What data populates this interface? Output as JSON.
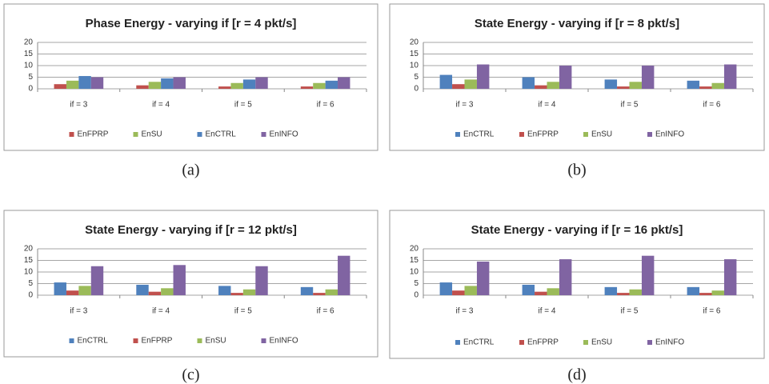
{
  "chart_data": [
    {
      "type": "bar",
      "title": "Phase Energy - varying if [r = 4 pkt/s]",
      "caption": "(a)",
      "categories": [
        "if = 3",
        "if = 4",
        "if = 5",
        "if = 6"
      ],
      "series": [
        {
          "name": "EnFPRP",
          "color": "#c0504d",
          "values": [
            2,
            1.5,
            1,
            1
          ]
        },
        {
          "name": "EnSU",
          "color": "#9bbb59",
          "values": [
            3.5,
            3,
            2.5,
            2.5
          ]
        },
        {
          "name": "EnCTRL",
          "color": "#4f81bd",
          "values": [
            5.5,
            4.5,
            4,
            3.5
          ]
        },
        {
          "name": "EnINFO",
          "color": "#8064a2",
          "values": [
            5,
            5,
            5,
            5
          ]
        }
      ],
      "ylim": [
        0,
        20
      ],
      "yticks": [
        0,
        5,
        10,
        15,
        20
      ],
      "grid": true,
      "legend": "bottom"
    },
    {
      "type": "bar",
      "title": "State Energy - varying if [r = 8 pkt/s]",
      "caption": "(b)",
      "categories": [
        "if = 3",
        "if = 4",
        "if = 5",
        "if = 6"
      ],
      "series": [
        {
          "name": "EnCTRL",
          "color": "#4f81bd",
          "values": [
            6,
            5,
            4,
            3.5
          ]
        },
        {
          "name": "EnFPRP",
          "color": "#c0504d",
          "values": [
            2,
            1.5,
            1,
            1
          ]
        },
        {
          "name": "EnSU",
          "color": "#9bbb59",
          "values": [
            4,
            3,
            3,
            2.5
          ]
        },
        {
          "name": "EnINFO",
          "color": "#8064a2",
          "values": [
            10.5,
            10,
            10,
            10.5
          ]
        }
      ],
      "ylim": [
        0,
        20
      ],
      "yticks": [
        0,
        5,
        10,
        15,
        20
      ],
      "grid": true,
      "legend": "bottom"
    },
    {
      "type": "bar",
      "title": "State Energy - varying if [r = 12 pkt/s]",
      "caption": "(c)",
      "categories": [
        "if = 3",
        "if = 4",
        "if = 5",
        "if = 6"
      ],
      "series": [
        {
          "name": "EnCTRL",
          "color": "#4f81bd",
          "values": [
            5.5,
            4.5,
            4,
            3.5
          ]
        },
        {
          "name": "EnFPRP",
          "color": "#c0504d",
          "values": [
            2,
            1.5,
            1,
            1
          ]
        },
        {
          "name": "EnSU",
          "color": "#9bbb59",
          "values": [
            4,
            3,
            2.5,
            2.5
          ]
        },
        {
          "name": "EnINFO",
          "color": "#8064a2",
          "values": [
            12.5,
            13,
            12.5,
            17
          ]
        }
      ],
      "ylim": [
        0,
        20
      ],
      "yticks": [
        0,
        5,
        10,
        15,
        20
      ],
      "grid": true,
      "legend": "bottom"
    },
    {
      "type": "bar",
      "title": "State Energy - varying if [r = 16 pkt/s]",
      "caption": "(d)",
      "categories": [
        "if = 3",
        "if = 4",
        "if = 5",
        "if = 6"
      ],
      "series": [
        {
          "name": "EnCTRL",
          "color": "#4f81bd",
          "values": [
            5.5,
            4.5,
            3.5,
            3.5
          ]
        },
        {
          "name": "EnFPRP",
          "color": "#c0504d",
          "values": [
            2,
            1.5,
            1,
            1
          ]
        },
        {
          "name": "EnSU",
          "color": "#9bbb59",
          "values": [
            4,
            3,
            2.5,
            2
          ]
        },
        {
          "name": "EnINFO",
          "color": "#8064a2",
          "values": [
            14.5,
            15.5,
            17,
            15.5
          ]
        }
      ],
      "ylim": [
        0,
        20
      ],
      "yticks": [
        0,
        5,
        10,
        15,
        20
      ],
      "grid": true,
      "legend": "bottom"
    }
  ]
}
